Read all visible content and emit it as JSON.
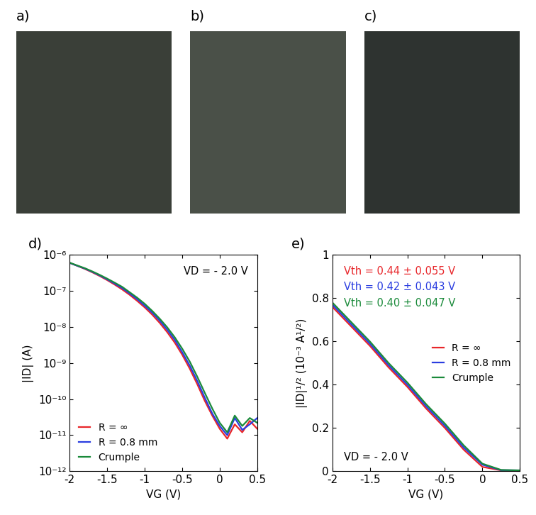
{
  "photos": [
    "a)",
    "b)",
    "c)"
  ],
  "chart_data": [
    {
      "type": "line",
      "title": "d)",
      "log": "y",
      "x_label": "VG (V)",
      "y_label": "|ID| (A)",
      "x": [
        -2.0,
        -1.9,
        -1.8,
        -1.7,
        -1.6,
        -1.5,
        -1.4,
        -1.3,
        -1.2,
        -1.1,
        -1.0,
        -0.9,
        -0.8,
        -0.7,
        -0.6,
        -0.5,
        -0.4,
        -0.3,
        -0.2,
        -0.1,
        0.0,
        0.1,
        0.2,
        0.3,
        0.4,
        0.5
      ],
      "series": [
        {
          "name": "R = ∞",
          "color": "#e8262a",
          "values": [
            6e-07,
            5e-07,
            4.1e-07,
            3.3e-07,
            2.6e-07,
            2e-07,
            1.5e-07,
            1.1e-07,
            7.8e-08,
            5.3e-08,
            3.5e-08,
            2.2e-08,
            1.3e-08,
            7.2e-09,
            3.7e-09,
            1.7e-09,
            7e-10,
            2.6e-10,
            9e-11,
            3.5e-11,
            1.5e-11,
            8e-12,
            2e-11,
            1.2e-11,
            2.5e-11,
            1.5e-11
          ]
        },
        {
          "name": "R = 0.8 mm",
          "color": "#2a3de0",
          "values": [
            6e-07,
            5e-07,
            4.2e-07,
            3.4e-07,
            2.7e-07,
            2.1e-07,
            1.6e-07,
            1.2e-07,
            8.5e-08,
            5.9e-08,
            3.9e-08,
            2.5e-08,
            1.5e-08,
            8.4e-09,
            4.4e-09,
            2e-09,
            8.5e-10,
            3.2e-10,
            1.1e-10,
            4e-11,
            1.8e-11,
            1e-11,
            3e-11,
            1.4e-11,
            2e-11,
            3e-11
          ]
        },
        {
          "name": "Crumple",
          "color": "#1a8a3a",
          "values": [
            6.1e-07,
            5.1e-07,
            4.3e-07,
            3.5e-07,
            2.8e-07,
            2.2e-07,
            1.7e-07,
            1.3e-07,
            9.2e-08,
            6.5e-08,
            4.4e-08,
            2.8e-08,
            1.7e-08,
            9.8e-09,
            5.2e-09,
            2.5e-09,
            1.1e-09,
            4.2e-10,
            1.5e-10,
            5.5e-11,
            2.2e-11,
            1.2e-11,
            3.5e-11,
            1.8e-11,
            3e-11,
            2.2e-11
          ]
        }
      ],
      "xlim": [
        -2,
        0.5
      ],
      "xticks": [
        -2,
        -1.5,
        -1,
        -0.5,
        0,
        0.5
      ],
      "ylim": [
        1e-12,
        1e-06
      ],
      "yticks": [
        {
          "value": 1e-12,
          "label": "10⁻¹²"
        },
        {
          "value": 1e-11,
          "label": "10⁻¹¹"
        },
        {
          "value": 1e-10,
          "label": "10⁻¹⁰"
        },
        {
          "value": 1e-09,
          "label": "10⁻⁹"
        },
        {
          "value": 1e-08,
          "label": "10⁻⁸"
        },
        {
          "value": 1e-07,
          "label": "10⁻⁷"
        },
        {
          "value": 1e-06,
          "label": "10⁻⁶"
        }
      ],
      "legend": "lower left",
      "annotations": [
        {
          "text": "VD = - 2.0 V"
        }
      ]
    },
    {
      "type": "line",
      "title": "e)",
      "x_label": "VG (V)",
      "y_label": "|ID|¹/² (10⁻³ A¹/²)",
      "x": [
        -2.0,
        -1.75,
        -1.5,
        -1.25,
        -1.0,
        -0.75,
        -0.5,
        -0.25,
        0.0,
        0.25,
        0.5
      ],
      "series": [
        {
          "name": "R = ∞",
          "color": "#e8262a",
          "values": [
            0.76,
            0.67,
            0.58,
            0.48,
            0.39,
            0.29,
            0.2,
            0.1,
            0.02,
            0.004,
            0.003
          ]
        },
        {
          "name": "R = 0.8 mm",
          "color": "#2a3de0",
          "values": [
            0.77,
            0.68,
            0.59,
            0.49,
            0.4,
            0.3,
            0.21,
            0.11,
            0.03,
            0.005,
            0.004
          ]
        },
        {
          "name": "Crumple",
          "color": "#1a8a3a",
          "values": [
            0.78,
            0.69,
            0.6,
            0.5,
            0.41,
            0.31,
            0.22,
            0.12,
            0.035,
            0.006,
            0.004
          ]
        }
      ],
      "xlim": [
        -2,
        0.5
      ],
      "xticks": [
        -2,
        -1.5,
        -1,
        -0.5,
        0,
        0.5
      ],
      "ylim": [
        0,
        1
      ],
      "yticks": [
        0,
        0.2,
        0.4,
        0.6,
        0.8,
        1
      ],
      "legend": "center right",
      "annotations": [
        {
          "text": "Vth = 0.44 ± 0.055 V",
          "color": "#e8262a"
        },
        {
          "text": "Vth = 0.42 ± 0.043 V",
          "color": "#2a3de0"
        },
        {
          "text": "Vth = 0.40 ± 0.047 V",
          "color": "#1a8a3a"
        },
        {
          "text": "VD = - 2.0 V"
        }
      ]
    }
  ]
}
